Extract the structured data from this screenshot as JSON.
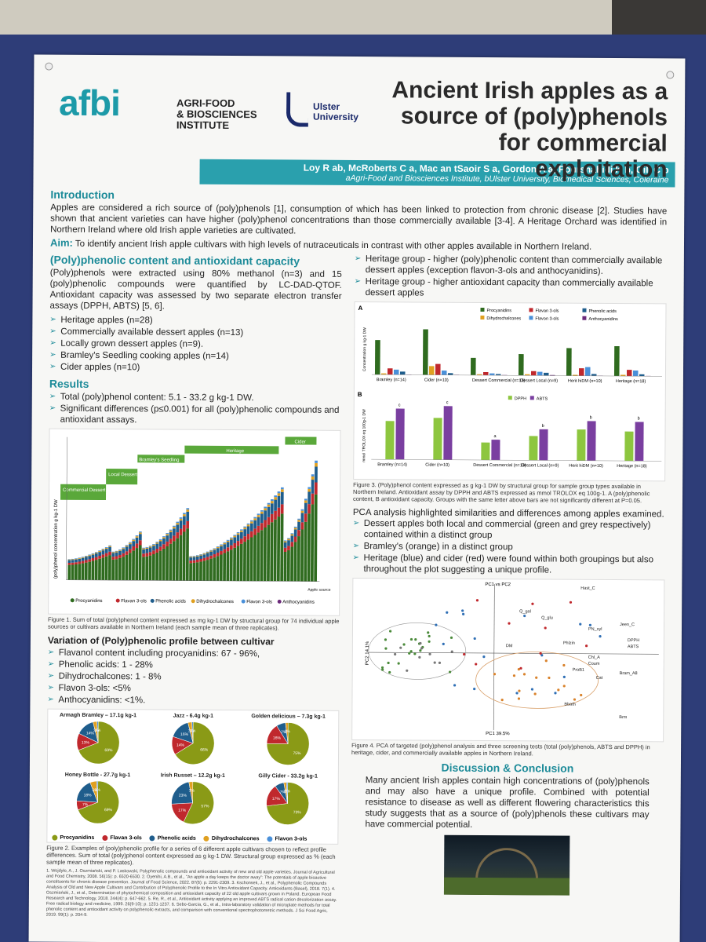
{
  "header": {
    "logo": "afbi",
    "institute": [
      "AGRI-FOOD",
      "& BIOSCIENCES",
      "INSTITUTE"
    ],
    "university": [
      "Ulster",
      "University"
    ],
    "title": "Ancient Irish apples as a source of (poly)phenols for commercial exploitation",
    "authors": "Loy R ab, McRoberts C a, Mac an tSaoir S a, Gordon A a, Pourshahidi K b, Gill C b",
    "affiliations": "aAgri-Food and Biosciences Institute, bUlster University, Biomedical Sciences, Coleraine"
  },
  "intro": {
    "heading": "Introduction",
    "text": "Apples are considered a rich source of (poly)phenols [1], consumption of which has been linked to protection from chronic disease [2]. Studies have shown that ancient varieties can have higher (poly)phenol concentrations than those commercially available [3-4]. A Heritage Orchard was identified in Northern Ireland where old Irish apple varieties are cultivated.",
    "aim_label": "Aim:",
    "aim_text": "To identify ancient Irish apple cultivars with high levels of nutraceuticals in contrast with other apples available in Northern Ireland."
  },
  "methods": {
    "heading": "(Poly)phenolic content and antioxidant capacity",
    "text": "(Poly)phenols were extracted using 80% methanol (n=3) and 15 (poly)phenolic compounds were quantified by LC-DAD-QTOF. Antioxidant capacity was assessed by two separate electron transfer assays (DPPH, ABTS) [5, 6].",
    "groups": [
      "Heritage apples (n=28)",
      "Commercially available dessert apples (n=13)",
      "Locally grown dessert apples (n=9).",
      "Bramley's Seedling cooking apples (n=14)",
      "Cider apples (n=10)"
    ]
  },
  "results": {
    "heading": "Results",
    "items": [
      "Total (poly)phenol content: 5.1 - 33.2 g kg-1 DW.",
      "Significant differences (p≤0.001) for all (poly)phenolic compounds and antioxidant assays."
    ]
  },
  "figure1": {
    "caption": "Figure 1. Sum of total (poly)phenol content expressed as mg kg-1 DW by structural group for 74 individual apple sources or cultivars available in Northern Ireland (each sample mean of three replicates).",
    "groups": [
      "Commercial Dessert",
      "Local Dessert",
      "Bramley's Seedling",
      "Heritage",
      "Cider"
    ],
    "ylabel": "(poly)phenol concentration g kg-1 DW",
    "legend": [
      "Procyanidins",
      "Flavan 3-ols",
      "Phenolic acids",
      "Dihydrochalcones",
      "Flavon 3-ols",
      "Anthocyanidins"
    ],
    "xlabel": "Apple source"
  },
  "variation": {
    "heading": "Variation of (Poly)phenolic profile between cultivar",
    "items": [
      "Flavanol content including procyanidins: 67 - 96%,",
      "Phenolic acids: 1 - 28%",
      "Dihydrochalcones: 1 - 8%",
      "Flavon 3-ols: <5%",
      "Anthocyanidins: <1%."
    ]
  },
  "figure2": {
    "pies": [
      {
        "name": "Armagh Bramley – 17.1g kg-1",
        "slices": [
          69,
          13,
          14,
          3,
          1
        ]
      },
      {
        "name": "Jazz - 6.4g kg-1",
        "slices": [
          66,
          14,
          16,
          3,
          1
        ]
      },
      {
        "name": "Golden delicious – 7.3g kg-1",
        "slices": [
          75,
          16,
          7,
          2,
          0
        ]
      },
      {
        "name": "Honey Bottle - 27.7g kg-1",
        "slices": [
          69,
          7,
          18,
          5,
          1
        ]
      },
      {
        "name": "Irish Russet – 12.2g kg-1",
        "slices": [
          57,
          17,
          23,
          3,
          0
        ]
      },
      {
        "name": "Gilly Cider - 33.2g kg-1",
        "slices": [
          73,
          17,
          7,
          2,
          1
        ]
      }
    ],
    "legend": [
      "Procyanidins",
      "Flavan 3-ols",
      "Phenolic acids",
      "Dihydrochalcones",
      "Flavon 3-ols"
    ],
    "caption": "Figure 2. Examples of (poly)phenolic profile for a series of 6 different apple cultivars chosen to reflect profile differences. Sum of total (poly)phenol content expressed as g kg-1 DW. Structural group expressed as % (each sample mean of three replicates)."
  },
  "right_top": {
    "items": [
      "Heritage group - higher (poly)phenolic content than commercially available dessert apples (exception flavon-3-ols and anthocyanidins).",
      "Heritage group - higher antioxidant capacity than commercially available dessert apples"
    ]
  },
  "figure3": {
    "panelA_label": "A",
    "panelB_label": "B",
    "ylabelA": "Concentration g kg-1 DW",
    "ylabelB": "mmol TROLOX eq 100g-1 DW",
    "categories": [
      "Bramley (n=14)",
      "Cider (n=10)",
      "Dessert Commercial (n=13)",
      "Dessert Local (n=9)",
      "Herit hiDM (n=10)",
      "Heritage (n=18)"
    ],
    "legendA": [
      "Procyanidins",
      "Flavan 3-ols",
      "Phenolic acids",
      "Dihydrochalcones",
      "Flavon 3-ols",
      "Anthocyanidins"
    ],
    "legendB": [
      "DPPH",
      "ABTS"
    ],
    "caption": "Figure 3. (Poly)phenol content expressed as g kg-1 DW by structural group for sample group types available in Northern Ireland. Antioxidant assay by DPPH and ABTS expressed as mmol TROLOX eq 100g-1. A (poly)phenolic content, B antioxidant capacity. Groups with the same letter above bars are not significantly different at P=0.05."
  },
  "chart_data": [
    {
      "type": "bar",
      "title": "A",
      "ylabel": "Concentration g kg-1 DW",
      "categories": [
        "Bramley (n=14)",
        "Cider (n=10)",
        "Dessert Commercial (n=13)",
        "Dessert Local (n=9)",
        "Herit hiDM (n=10)",
        "Heritage (n=18)"
      ],
      "ylim": [
        0,
        16
      ],
      "series": [
        {
          "name": "Procyanidins",
          "values": [
            11,
            14.5,
            5.5,
            6.8,
            8.8,
            9.5
          ]
        },
        {
          "name": "Dihydrochalcones",
          "values": [
            0.4,
            2.8,
            0.3,
            0.4,
            0.3,
            0.4
          ]
        },
        {
          "name": "Flavan 3-ols",
          "values": [
            2.0,
            3.5,
            1.0,
            1.4,
            2.4,
            2.0
          ]
        },
        {
          "name": "Flavon 3-ols",
          "values": [
            1.6,
            1.4,
            0.6,
            1.2,
            2.8,
            1.8
          ]
        },
        {
          "name": "Phenolic acids",
          "values": [
            1.0,
            0.6,
            0.4,
            0.9,
            0.6,
            0.6
          ]
        },
        {
          "name": "Anthocyanidins",
          "values": [
            0.1,
            0.1,
            0.1,
            0.2,
            0.1,
            0.1
          ]
        }
      ]
    },
    {
      "type": "bar",
      "title": "B",
      "ylabel": "mmol TROLOX eq 100g-1 DW",
      "categories": [
        "Bramley (n=14)",
        "Cider (n=10)",
        "Dessert Commercial (n=13)",
        "Dessert Local (n=9)",
        "Herit hiDM (n=10)",
        "Heritage (n=18)"
      ],
      "ylim": [
        0,
        10
      ],
      "series": [
        {
          "name": "DPPH",
          "values": [
            6.8,
            7.4,
            3.1,
            4.3,
            5.5,
            5.2
          ]
        },
        {
          "name": "ABTS",
          "values": [
            9.0,
            9.5,
            3.6,
            5.5,
            7.0,
            6.9
          ]
        }
      ],
      "letters": [
        "c",
        "c",
        "a",
        "b",
        "b",
        "b"
      ]
    }
  ],
  "pca": {
    "intro": "PCA analysis highlighted similarities and differences among apples examined.",
    "items": [
      "Dessert apples both local and commercial (green and grey respectively) contained within a distinct group",
      "Bramley's (orange) in a distinct group",
      "Heritage (blue) and cider (red) were found within both groupings but also throughout the plot suggesting a unique profile."
    ],
    "axis_x": "PC1 39.5%",
    "axis_y": "PC2 14.1%",
    "axis_top": "PC1 vs PC2",
    "labels": [
      "Q_gal",
      "Q_glu",
      "PN_xyl",
      "DPPH",
      "ABTS",
      "Phlzin",
      "Chl_A",
      "Coum",
      "ProB1",
      "Cat",
      "DM",
      "Hast_C",
      "Jeen_C",
      "Bram_A8",
      "Bbath",
      "Brm"
    ],
    "caption": "Figure 4. PCA of targeted (poly)phenol analysis and three screening tests (total (poly)phenols, ABTS and DPPH) in heritage, cider, and commercially available apples in Northern Ireland."
  },
  "discussion": {
    "heading": "Discussion & Conclusion",
    "text": "Many ancient Irish apples contain high concentrations of (poly)phenols and may also have a unique profile. Combined with potential resistance to disease as well as different flowering characteristics this study suggests that as a source of (poly)phenols these cultivars may have commercial potential."
  },
  "references": "1. Wojdyło, A., J. Oszmiański, and P. Laskowski, Polyphenolic compounds and antioxidant activity of new and old apple varieties. Journal of Agricultural and Food Chemistry, 2008. 56(15): p. 6520-6530. 2. Oyenihi, A.B., et al., \"An apple a day keeps the doctor away\": The potentials of apple bioactive constituents for chronic disease prevention. Journal of Food Science, 2022. 87(6): p. 2291-2309. 3. Kschonsek, J., et al., Polyphenolic Compounds Analysis of Old and New Apple Cultivars and Contribution of Polyphenolic Profile to the In Vitro Antioxidant Capacity. Antioxidants (Basel), 2018. 7(1). 4. Oszmiański, J., et al., Determination of phytochemical composition and antioxidant capacity of 22 old apple cultivars grown in Poland. European Food Research and Technology, 2018. 244(4): p. 647-662. 5. Re, R., et al., Antioxidant activity applying an improved ABTS radical cation decolorization assay. Free radical biology and medicine, 1999. 26(9-10): p. 1231-1237. 6. Sebo-García, G., et al., Intra-laboratory validation of microplate methods for total phenolic content and antioxidant activity on polyphenolic extracts, and comparison with conventional spectrophotometric methods. J Sci Food Agric, 2019. 99(1): p. 204-9.",
  "colors": {
    "procyanidins": "#2f6b1f",
    "flavan3ols": "#c0282d",
    "phenolic": "#1f5d8c",
    "dihydro": "#e0a020",
    "flavon3ols": "#4a90d9",
    "antho": "#6b2a7a",
    "pie_green": "#8a9a16",
    "dpph": "#8dc63f",
    "abts": "#7a3fa0"
  }
}
